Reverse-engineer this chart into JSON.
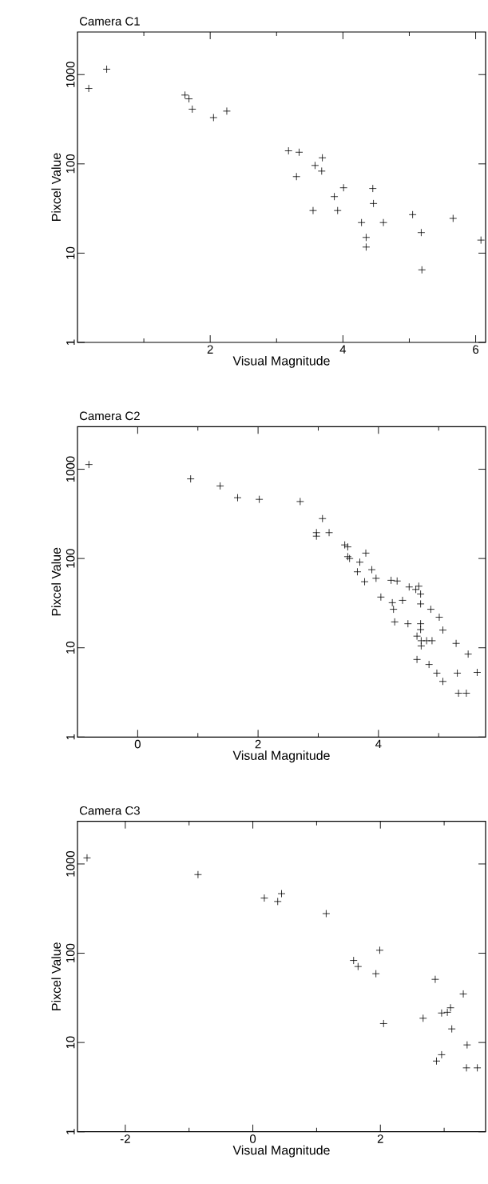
{
  "chart_data": [
    {
      "type": "scatter",
      "title": "Camera C1",
      "xlabel": "Visual Magnitude",
      "ylabel": "Pixcel Value",
      "log": "y",
      "marker": "cross",
      "color": "#000000",
      "x": [
        0.17,
        0.44,
        1.62,
        1.68,
        1.73,
        2.05,
        2.25,
        3.18,
        3.34,
        3.3,
        3.58,
        3.69,
        3.68,
        3.55,
        3.87,
        3.92,
        4.01,
        4.45,
        4.46,
        4.28,
        4.61,
        4.35,
        4.35,
        5.05,
        5.18,
        5.19,
        5.66,
        6.08
      ],
      "values": [
        700,
        1150,
        590,
        535,
        410,
        330,
        390,
        140,
        135,
        72,
        96,
        117,
        83,
        30,
        43,
        30,
        54,
        53,
        36,
        22,
        22,
        15,
        11.7,
        27,
        17,
        6.5,
        24.5,
        14
      ],
      "xlim": [
        0,
        6.15
      ],
      "ylim": [
        1,
        3000
      ],
      "xticks": [
        {
          "value": 1,
          "label": null
        },
        2,
        {
          "value": 3,
          "label": null
        },
        4,
        {
          "value": 5,
          "label": null
        },
        6
      ],
      "yticks": [
        1,
        10,
        100,
        1000
      ]
    },
    {
      "type": "scatter",
      "title": "Camera C2",
      "xlabel": "Visual Magnitude",
      "ylabel": "Pixcel Value",
      "log": "y",
      "marker": "cross",
      "color": "#000000",
      "x": [
        -0.81,
        0.88,
        1.37,
        1.66,
        2.02,
        2.7,
        3.07,
        2.97,
        2.97,
        3.18,
        3.44,
        3.49,
        3.49,
        3.52,
        3.69,
        3.79,
        3.65,
        3.89,
        3.77,
        3.96,
        4.21,
        4.31,
        4.04,
        4.23,
        4.25,
        4.4,
        4.27,
        4.49,
        4.51,
        4.62,
        4.67,
        4.7,
        4.7,
        4.87,
        5.01,
        5.07,
        4.7,
        4.7,
        4.64,
        4.71,
        4.8,
        4.89,
        4.71,
        5.29,
        5.49,
        4.64,
        4.84,
        4.97,
        5.07,
        5.31,
        5.33,
        5.46,
        5.64
      ],
      "values": [
        1130,
        780,
        650,
        480,
        460,
        435,
        280,
        195,
        178,
        195,
        142,
        135,
        105,
        100,
        91,
        115,
        71,
        75,
        55,
        60,
        57,
        56,
        37,
        32,
        27,
        34,
        19.5,
        18.6,
        48,
        45,
        49,
        40,
        31,
        27,
        22,
        15.8,
        18.6,
        16,
        13.5,
        12,
        12,
        12,
        10.5,
        11.2,
        8.5,
        7.4,
        6.5,
        5.2,
        4.2,
        5.2,
        3.1,
        3.1,
        5.3
      ],
      "xlim": [
        -1,
        5.78
      ],
      "ylim": [
        1,
        3000
      ],
      "xticks": [
        0,
        {
          "value": 1,
          "label": null
        },
        2,
        {
          "value": 3,
          "label": null
        },
        4,
        {
          "value": 5,
          "label": null
        }
      ],
      "yticks": [
        1,
        10,
        100,
        1000
      ]
    },
    {
      "type": "scatter",
      "title": "Camera C3",
      "xlabel": "Visual Magnitude",
      "ylabel": "Pixcel Value",
      "log": "y",
      "marker": "cross",
      "color": "#000000",
      "x": [
        -2.6,
        -0.86,
        0.18,
        0.39,
        0.45,
        1.15,
        1.58,
        1.65,
        1.99,
        1.93,
        2.05,
        2.67,
        2.86,
        2.96,
        3.05,
        3.1,
        3.12,
        3.3,
        3.36,
        2.88,
        2.96,
        3.35,
        3.52
      ],
      "values": [
        1170,
        760,
        415,
        380,
        465,
        278,
        83,
        71,
        108,
        59,
        16.3,
        18.7,
        51,
        21.4,
        21.8,
        24.5,
        14.2,
        35,
        9.4,
        6.2,
        7.3,
        5.2,
        5.2
      ],
      "xlim": [
        -2.75,
        3.65
      ],
      "ylim": [
        1,
        3000
      ],
      "xticks": [
        -2,
        {
          "value": -1,
          "label": null
        },
        0,
        {
          "value": 1,
          "label": null
        },
        2,
        {
          "value": 3,
          "label": null
        }
      ],
      "yticks": [
        1,
        10,
        100,
        1000
      ]
    }
  ]
}
